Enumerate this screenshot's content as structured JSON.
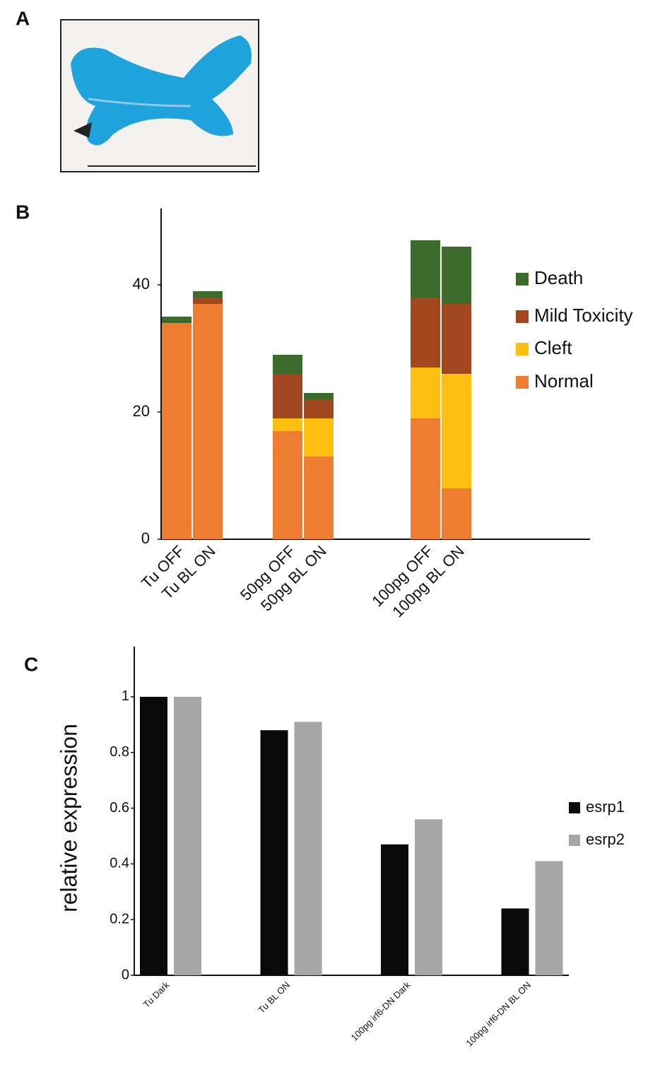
{
  "panel_labels": [
    "A",
    "B",
    "C"
  ],
  "chart_data": [
    {
      "type": "bar",
      "stacked": true,
      "categories": [
        "Tu OFF",
        "Tu BL ON",
        "50pg OFF",
        "50pg BL ON",
        "100pg OFF",
        "100pg BL ON"
      ],
      "series": [
        {
          "name": "Normal",
          "color": "#ef7d31",
          "values": [
            34,
            37,
            17,
            13,
            19,
            8
          ]
        },
        {
          "name": "Cleft",
          "color": "#fdc010",
          "values": [
            0,
            0,
            2,
            6,
            8,
            18
          ]
        },
        {
          "name": "Mild Toxicity",
          "color": "#a0471f",
          "values": [
            0,
            1,
            7,
            3,
            11,
            11
          ]
        },
        {
          "name": "Death",
          "color": "#3d6b2c",
          "values": [
            1,
            1,
            3,
            1,
            9,
            9
          ]
        }
      ],
      "ylim": [
        0,
        52
      ],
      "yticks": [
        0,
        20,
        40
      ],
      "legend": "right"
    },
    {
      "type": "bar",
      "stacked": false,
      "y_label": "relative expression",
      "categories": [
        "Tu Dark",
        "Tu BL ON",
        "100pg irf6-DN Dark",
        "100pg irf6-DN BL ON"
      ],
      "series": [
        {
          "name": "esrp1",
          "color": "#0a0a0a",
          "values": [
            1,
            0.88,
            0.47,
            0.24
          ]
        },
        {
          "name": "esrp2",
          "color": "#a6a6a6",
          "values": [
            1,
            0.91,
            0.56,
            0.41
          ]
        }
      ],
      "ylim": [
        0,
        1.18
      ],
      "yticks": [
        0,
        0.2,
        0.4,
        0.6,
        0.8,
        1
      ],
      "legend": "right"
    }
  ]
}
